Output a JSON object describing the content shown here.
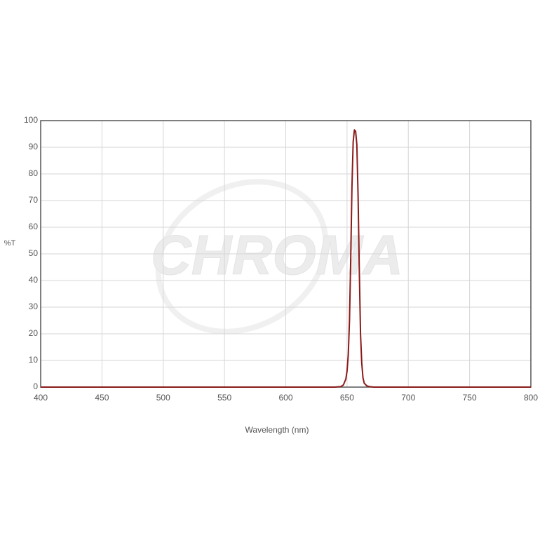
{
  "chart_data": {
    "type": "line",
    "xlabel": "Wavelength (nm)",
    "ylabel": "%T",
    "watermark": "CHROMA",
    "x": [
      400,
      600,
      640,
      645,
      647,
      649,
      650,
      651,
      652,
      653,
      654,
      655,
      656,
      657,
      658,
      659,
      660,
      661,
      662,
      663,
      664,
      666,
      668,
      672,
      700,
      800
    ],
    "values": [
      0,
      0,
      0,
      0.2,
      0.8,
      3,
      6,
      12,
      25,
      48,
      75,
      92,
      96.5,
      96,
      91,
      72,
      44,
      20,
      9,
      3.5,
      1.5,
      0.5,
      0.2,
      0,
      0,
      0
    ],
    "color": "#8b1a1a",
    "xlim": [
      400,
      800
    ],
    "xticks": [
      400,
      450,
      500,
      550,
      600,
      650,
      700,
      750,
      800
    ],
    "ylim": [
      0,
      100
    ],
    "yticks": [
      0,
      10,
      20,
      30,
      40,
      50,
      60,
      70,
      80,
      90,
      100
    ],
    "grid": true
  }
}
